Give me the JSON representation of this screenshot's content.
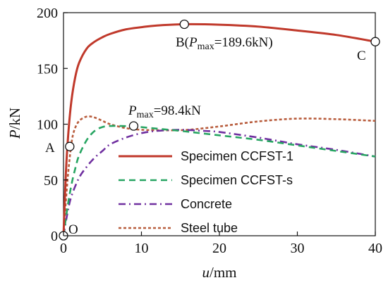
{
  "chart_data": {
    "type": "line",
    "xlabel": "u/mm",
    "ylabel": "P/kN",
    "xlim": [
      0,
      40
    ],
    "ylim": [
      0,
      200
    ],
    "xticks": [
      "0",
      "10",
      "20",
      "30",
      "40"
    ],
    "yticks": [
      "0",
      "50",
      "100",
      "150",
      "200"
    ],
    "legend_position": "right-middle",
    "grid": false,
    "series": [
      {
        "name": "Specimen CCFST-1",
        "color": "#c0392b",
        "style": "solid",
        "x": [
          0,
          0.3,
          0.6,
          1.0,
          1.5,
          2.0,
          3.0,
          4.0,
          5.0,
          6.0,
          8.0,
          10.0,
          12.0,
          15.5,
          20.0,
          25.0,
          30.0,
          35.0,
          40.0
        ],
        "y": [
          0,
          55,
          90,
          120,
          142,
          155,
          168,
          174,
          178,
          181,
          185,
          187,
          188.5,
          189.6,
          189.2,
          187.5,
          184,
          180,
          174
        ]
      },
      {
        "name": "Specimen CCFST-s",
        "color": "#27a562",
        "style": "dashed",
        "x": [
          0,
          0.5,
          1.0,
          1.5,
          2.0,
          3.0,
          4.0,
          5.0,
          6.0,
          7.0,
          9.0,
          12.0,
          15.0,
          20.0,
          25.0,
          30.0,
          35.0,
          40.0
        ],
        "y": [
          0,
          25,
          45,
          60,
          72,
          86,
          94,
          97.5,
          98.4,
          98.4,
          98,
          96,
          94,
          90,
          86,
          81,
          76,
          71
        ]
      },
      {
        "name": "Concrete",
        "color": "#7030a0",
        "style": "dashdot",
        "x": [
          0,
          0.5,
          1.0,
          2.0,
          3.0,
          4.0,
          5.0,
          6.0,
          8.0,
          10.0,
          12.0,
          15.0,
          18.0,
          20.0,
          25.0,
          30.0,
          35.0,
          40.0
        ],
        "y": [
          0,
          20,
          35,
          52,
          62,
          70,
          76,
          82,
          88,
          92,
          94,
          95,
          94,
          93,
          88,
          82,
          77,
          71
        ]
      },
      {
        "name": "Steel tube",
        "color": "#b85c3c",
        "style": "dotted",
        "x": [
          0,
          0.4,
          0.8,
          1.2,
          1.8,
          2.5,
          3.2,
          4.0,
          5.0,
          6.0,
          8.0,
          10.0,
          13.0,
          16.0,
          20.0,
          25.0,
          30.0,
          35.0,
          40.0
        ],
        "y": [
          0,
          40,
          70,
          90,
          101,
          105.5,
          107,
          106,
          103,
          100,
          96.5,
          95,
          94.5,
          95,
          98,
          102.5,
          105,
          104.5,
          103
        ]
      }
    ],
    "markers": [
      {
        "label": "O",
        "x": 0,
        "y": 0
      },
      {
        "label": "A",
        "x": 0.8,
        "y": 80
      },
      {
        "label": "B(Pmax=189.6kN)",
        "x": 15.5,
        "y": 189.6
      },
      {
        "label": "C",
        "x": 40,
        "y": 174
      },
      {
        "label": "Pmax=98.4kN",
        "x": 9,
        "y": 98.4
      }
    ],
    "annotations": {
      "O": "O",
      "A": "A",
      "B_prefix": "B(",
      "B_P": "P",
      "B_sub": "max",
      "B_suffix": "=189.6kN)",
      "C": "C",
      "pmax_P": "P",
      "pmax_sub": "max",
      "pmax_suffix": "=98.4kN"
    }
  }
}
